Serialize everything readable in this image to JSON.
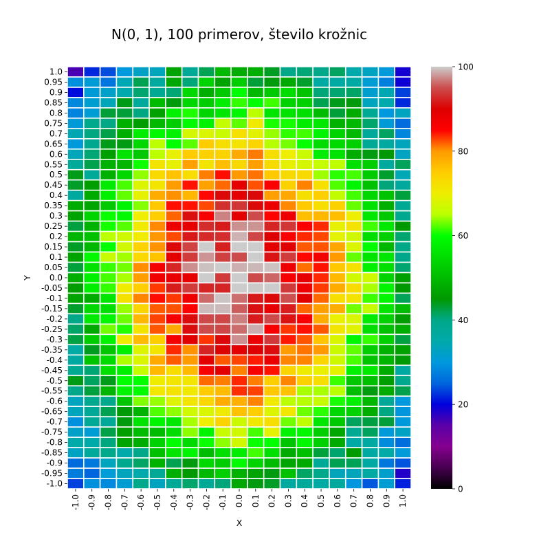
{
  "chart_data": {
    "type": "heatmap",
    "title": "N(0, 1), 100 primerov, število krožnic",
    "xlabel": "X",
    "ylabel": "Y",
    "x_ticks": [
      "-1.0",
      "-0.9",
      "-0.8",
      "-0.7",
      "-0.6",
      "-0.5",
      "-0.4",
      "-0.3",
      "-0.2",
      "-0.1",
      "0.0",
      "0.1",
      "0.2",
      "0.3",
      "0.4",
      "0.5",
      "0.6",
      "0.7",
      "0.8",
      "0.9",
      "1.0"
    ],
    "y_ticks": [
      "1.0",
      "0.95",
      "0.9",
      "0.85",
      "0.8",
      "0.75",
      "0.7",
      "0.65",
      "0.6",
      "0.55",
      "0.5",
      "0.45",
      "0.4",
      "0.35",
      "0.3",
      "0.25",
      "0.2",
      "0.15",
      "0.1",
      "0.05",
      "0.0",
      "-0.05",
      "-0.1",
      "-0.15",
      "-0.2",
      "-0.25",
      "-0.3",
      "-0.35",
      "-0.4",
      "-0.45",
      "-0.5",
      "-0.55",
      "-0.6",
      "-0.65",
      "-0.7",
      "-0.75",
      "-0.8",
      "-0.85",
      "-0.9",
      "-0.95",
      "-1.0"
    ],
    "colorbar": {
      "range": [
        0,
        100
      ],
      "ticks": [
        "0",
        "20",
        "40",
        "60",
        "80",
        "100"
      ],
      "colormap": "nipy_spectral"
    },
    "grid_lines": "white",
    "value_model": {
      "description_of_values": "values per cell read approximately from colors; highest near center, lowest at corners",
      "peak": 100,
      "edge": 45,
      "corner": 22
    }
  }
}
